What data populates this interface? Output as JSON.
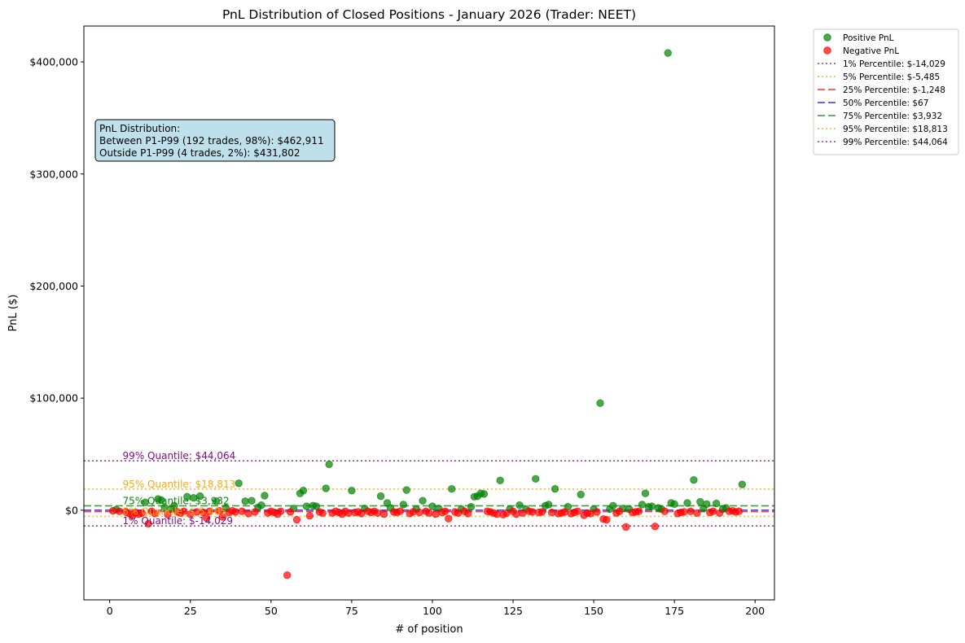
{
  "chart_data": {
    "type": "scatter",
    "title": "PnL Distribution of Closed Positions - January 2026 (Trader: NEET)",
    "xlabel": "# of position",
    "ylabel": "PnL ($)",
    "xlim": [
      -8,
      206
    ],
    "ylim": [
      -80000,
      432000
    ],
    "x_ticks": [
      0,
      25,
      50,
      75,
      100,
      125,
      150,
      175,
      200
    ],
    "x_tick_labels": [
      "0",
      "25",
      "50",
      "75",
      "100",
      "125",
      "150",
      "175",
      "200"
    ],
    "y_ticks": [
      0,
      100000,
      200000,
      300000,
      400000
    ],
    "y_tick_labels": [
      "$0",
      "$100,000",
      "$200,000",
      "$300,000",
      "$400,000"
    ],
    "grid": false,
    "legend_position": "outside top-right",
    "series": [
      {
        "name": "Positive PnL",
        "color": "#008000",
        "points": [
          [
            2,
            500
          ],
          [
            11,
            7000
          ],
          [
            15,
            10000
          ],
          [
            16,
            9000
          ],
          [
            17,
            2500
          ],
          [
            19,
            1000
          ],
          [
            20,
            4000
          ],
          [
            24,
            12000
          ],
          [
            26,
            11000
          ],
          [
            28,
            12500
          ],
          [
            33,
            8000
          ],
          [
            36,
            2000
          ],
          [
            40,
            24000
          ],
          [
            42,
            8000
          ],
          [
            44,
            8500
          ],
          [
            46,
            2500
          ],
          [
            47,
            4500
          ],
          [
            48,
            13000
          ],
          [
            57,
            1500
          ],
          [
            59,
            15000
          ],
          [
            60,
            17500
          ],
          [
            61,
            3500
          ],
          [
            63,
            4000
          ],
          [
            64,
            3500
          ],
          [
            67,
            19500
          ],
          [
            68,
            41000
          ],
          [
            75,
            17500
          ],
          [
            79,
            1500
          ],
          [
            84,
            12500
          ],
          [
            86,
            6500
          ],
          [
            87,
            2000
          ],
          [
            91,
            5000
          ],
          [
            92,
            18000
          ],
          [
            95,
            1000
          ],
          [
            97,
            8500
          ],
          [
            100,
            3500
          ],
          [
            102,
            1500
          ],
          [
            106,
            19000
          ],
          [
            109,
            1000
          ],
          [
            112,
            3000
          ],
          [
            113,
            12000
          ],
          [
            114,
            12500
          ],
          [
            115,
            15000
          ],
          [
            116,
            14500
          ],
          [
            121,
            26500
          ],
          [
            124,
            1000
          ],
          [
            127,
            4500
          ],
          [
            129,
            1000
          ],
          [
            132,
            28000
          ],
          [
            135,
            4000
          ],
          [
            136,
            5000
          ],
          [
            138,
            19000
          ],
          [
            142,
            3000
          ],
          [
            146,
            14000
          ],
          [
            150,
            1000
          ],
          [
            152,
            95500
          ],
          [
            155,
            1000
          ],
          [
            156,
            4000
          ],
          [
            159,
            1500
          ],
          [
            161,
            1000
          ],
          [
            165,
            5000
          ],
          [
            166,
            15000
          ],
          [
            167,
            3000
          ],
          [
            168,
            3500
          ],
          [
            170,
            2000
          ],
          [
            171,
            1000
          ],
          [
            173,
            408000
          ],
          [
            174,
            6500
          ],
          [
            175,
            5500
          ],
          [
            179,
            6500
          ],
          [
            181,
            27000
          ],
          [
            183,
            7500
          ],
          [
            184,
            1500
          ],
          [
            185,
            5500
          ],
          [
            188,
            6000
          ],
          [
            190,
            1000
          ],
          [
            191,
            2000
          ],
          [
            196,
            23000
          ]
        ]
      },
      {
        "name": "Negative PnL",
        "color": "#ff0000",
        "points": [
          [
            1,
            -500
          ],
          [
            3,
            -1000
          ],
          [
            5,
            -1500
          ],
          [
            6,
            -3000
          ],
          [
            7,
            -5000
          ],
          [
            8,
            -2000
          ],
          [
            9,
            -3500
          ],
          [
            10,
            -2500
          ],
          [
            12,
            -12000
          ],
          [
            13,
            -1000
          ],
          [
            14,
            -3000
          ],
          [
            18,
            -4000
          ],
          [
            21,
            -1500
          ],
          [
            22,
            -2500
          ],
          [
            23,
            -1000
          ],
          [
            25,
            -3500
          ],
          [
            27,
            -1500
          ],
          [
            29,
            -2000
          ],
          [
            30,
            -7000
          ],
          [
            31,
            -1000
          ],
          [
            34,
            -500
          ],
          [
            35,
            -6000
          ],
          [
            37,
            -2000
          ],
          [
            38,
            -500
          ],
          [
            39,
            -1500
          ],
          [
            41,
            -1000
          ],
          [
            43,
            -3000
          ],
          [
            45,
            -1500
          ],
          [
            49,
            -2500
          ],
          [
            50,
            -1000
          ],
          [
            51,
            -2000
          ],
          [
            52,
            -3500
          ],
          [
            53,
            -1000
          ],
          [
            55,
            -58000
          ],
          [
            56,
            -1500
          ],
          [
            58,
            -8500
          ],
          [
            62,
            -5000
          ],
          [
            65,
            -1500
          ],
          [
            66,
            -2500
          ],
          [
            69,
            -2500
          ],
          [
            70,
            -1000
          ],
          [
            71,
            -2000
          ],
          [
            72,
            -3500
          ],
          [
            73,
            -1000
          ],
          [
            74,
            -2500
          ],
          [
            76,
            -2000
          ],
          [
            77,
            -1500
          ],
          [
            78,
            -3000
          ],
          [
            80,
            -1000
          ],
          [
            81,
            -2000
          ],
          [
            82,
            -1000
          ],
          [
            83,
            -2500
          ],
          [
            85,
            -3500
          ],
          [
            88,
            -1500
          ],
          [
            89,
            -2000
          ],
          [
            90,
            -1000
          ],
          [
            93,
            -3000
          ],
          [
            94,
            -1500
          ],
          [
            96,
            -2000
          ],
          [
            98,
            -1000
          ],
          [
            99,
            -2500
          ],
          [
            101,
            -3500
          ],
          [
            103,
            -2000
          ],
          [
            104,
            -1000
          ],
          [
            105,
            -7500
          ],
          [
            107,
            -1500
          ],
          [
            108,
            -2500
          ],
          [
            110,
            -1000
          ],
          [
            111,
            -3000
          ],
          [
            117,
            -1000
          ],
          [
            118,
            -1500
          ],
          [
            119,
            -2500
          ],
          [
            120,
            -3500
          ],
          [
            122,
            -4000
          ],
          [
            123,
            -2500
          ],
          [
            125,
            -1000
          ],
          [
            126,
            -3500
          ],
          [
            128,
            -2500
          ],
          [
            130,
            -1000
          ],
          [
            131,
            -1500
          ],
          [
            133,
            -2000
          ],
          [
            134,
            -1500
          ],
          [
            137,
            -2000
          ],
          [
            139,
            -3000
          ],
          [
            140,
            -2500
          ],
          [
            141,
            -1500
          ],
          [
            143,
            -3000
          ],
          [
            144,
            -2000
          ],
          [
            145,
            -1000
          ],
          [
            147,
            -4500
          ],
          [
            148,
            -2500
          ],
          [
            149,
            -3000
          ],
          [
            151,
            -1500
          ],
          [
            153,
            -8000
          ],
          [
            154,
            -8500
          ],
          [
            157,
            -2500
          ],
          [
            158,
            -1000
          ],
          [
            160,
            -15000
          ],
          [
            162,
            -2000
          ],
          [
            163,
            -1500
          ],
          [
            164,
            -1000
          ],
          [
            169,
            -14500
          ],
          [
            172,
            -1000
          ],
          [
            176,
            -3000
          ],
          [
            177,
            -2000
          ],
          [
            178,
            -1500
          ],
          [
            180,
            -1000
          ],
          [
            182,
            -2500
          ],
          [
            186,
            -2000
          ],
          [
            187,
            -1000
          ],
          [
            189,
            -2500
          ],
          [
            192,
            -1000
          ],
          [
            193,
            -500
          ],
          [
            194,
            -1500
          ],
          [
            195,
            -1000
          ]
        ]
      }
    ],
    "percentile_lines": [
      {
        "label": "1% Percentile: $-14,029",
        "value": -14029,
        "color": "#800080",
        "style": "dotted"
      },
      {
        "label": "5% Percentile: $-5,485",
        "value": -5485,
        "color": "#ffa500",
        "style": "dotted"
      },
      {
        "label": "25% Percentile: $-1,248",
        "value": -1248,
        "color": "#ff0000",
        "style": "dashed"
      },
      {
        "label": "50% Percentile: $67",
        "value": 67,
        "color": "#0000ff",
        "style": "dashed"
      },
      {
        "label": "75% Percentile: $3,932",
        "value": 3932,
        "color": "#008000",
        "style": "dashed"
      },
      {
        "label": "95% Percentile: $18,813",
        "value": 18813,
        "color": "#ffa500",
        "style": "dotted"
      },
      {
        "label": "99% Percentile: $44,064",
        "value": 44064,
        "color": "#800080",
        "style": "dotted"
      }
    ],
    "annotations": [
      {
        "text": "99% Quantile: $44,064",
        "value": 44064,
        "color": "#800080"
      },
      {
        "text": "95% Quantile: $18,813",
        "value": 18813,
        "color": "#ffa500"
      },
      {
        "text": "75% Quantile: $3,932",
        "value": 3932,
        "color": "#008000"
      },
      {
        "text": "5% Quantile: $-5,485",
        "value": -5485,
        "color": "#ffa500"
      },
      {
        "text": "1% Quantile: $-14,029",
        "value": -14029,
        "color": "#800080"
      }
    ],
    "annotation_x": 4,
    "info_box": {
      "lines": [
        "PnL Distribution:",
        "Between P1-P99 (192 trades, 98%): $462,911",
        "Outside P1-P99 (4 trades, 2%): $431,802"
      ],
      "background": "#add8e6"
    }
  }
}
